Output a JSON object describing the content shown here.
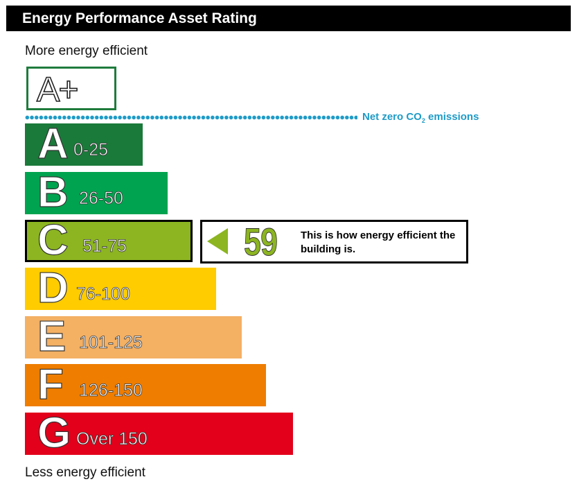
{
  "header": {
    "title": "Energy Performance Asset Rating"
  },
  "captions": {
    "top": "More energy efficient",
    "bottom": "Less energy efficient"
  },
  "netzero": {
    "label_prefix": "Net zero CO",
    "label_sub": "2",
    "label_suffix": " emissions",
    "color": "#1e9bc7"
  },
  "chart_data": {
    "type": "bar",
    "bands": [
      {
        "letter": "A+",
        "range": "",
        "color": "#ffffff",
        "border": "#1e7b3c"
      },
      {
        "letter": "A",
        "range": "0-25",
        "color": "#1a7a3a"
      },
      {
        "letter": "B",
        "range": "26-50",
        "color": "#00a34f"
      },
      {
        "letter": "C",
        "range": "51-75",
        "color": "#8cb521"
      },
      {
        "letter": "D",
        "range": "76-100",
        "color": "#ffcc00"
      },
      {
        "letter": "E",
        "range": "101-125",
        "color": "#f4b063"
      },
      {
        "letter": "F",
        "range": "126-150",
        "color": "#ee7d00"
      },
      {
        "letter": "G",
        "range": "Over 150",
        "color": "#e2001a"
      }
    ],
    "rating": {
      "value": "59",
      "band": "C",
      "text": "This is how energy efficient the building is."
    }
  }
}
